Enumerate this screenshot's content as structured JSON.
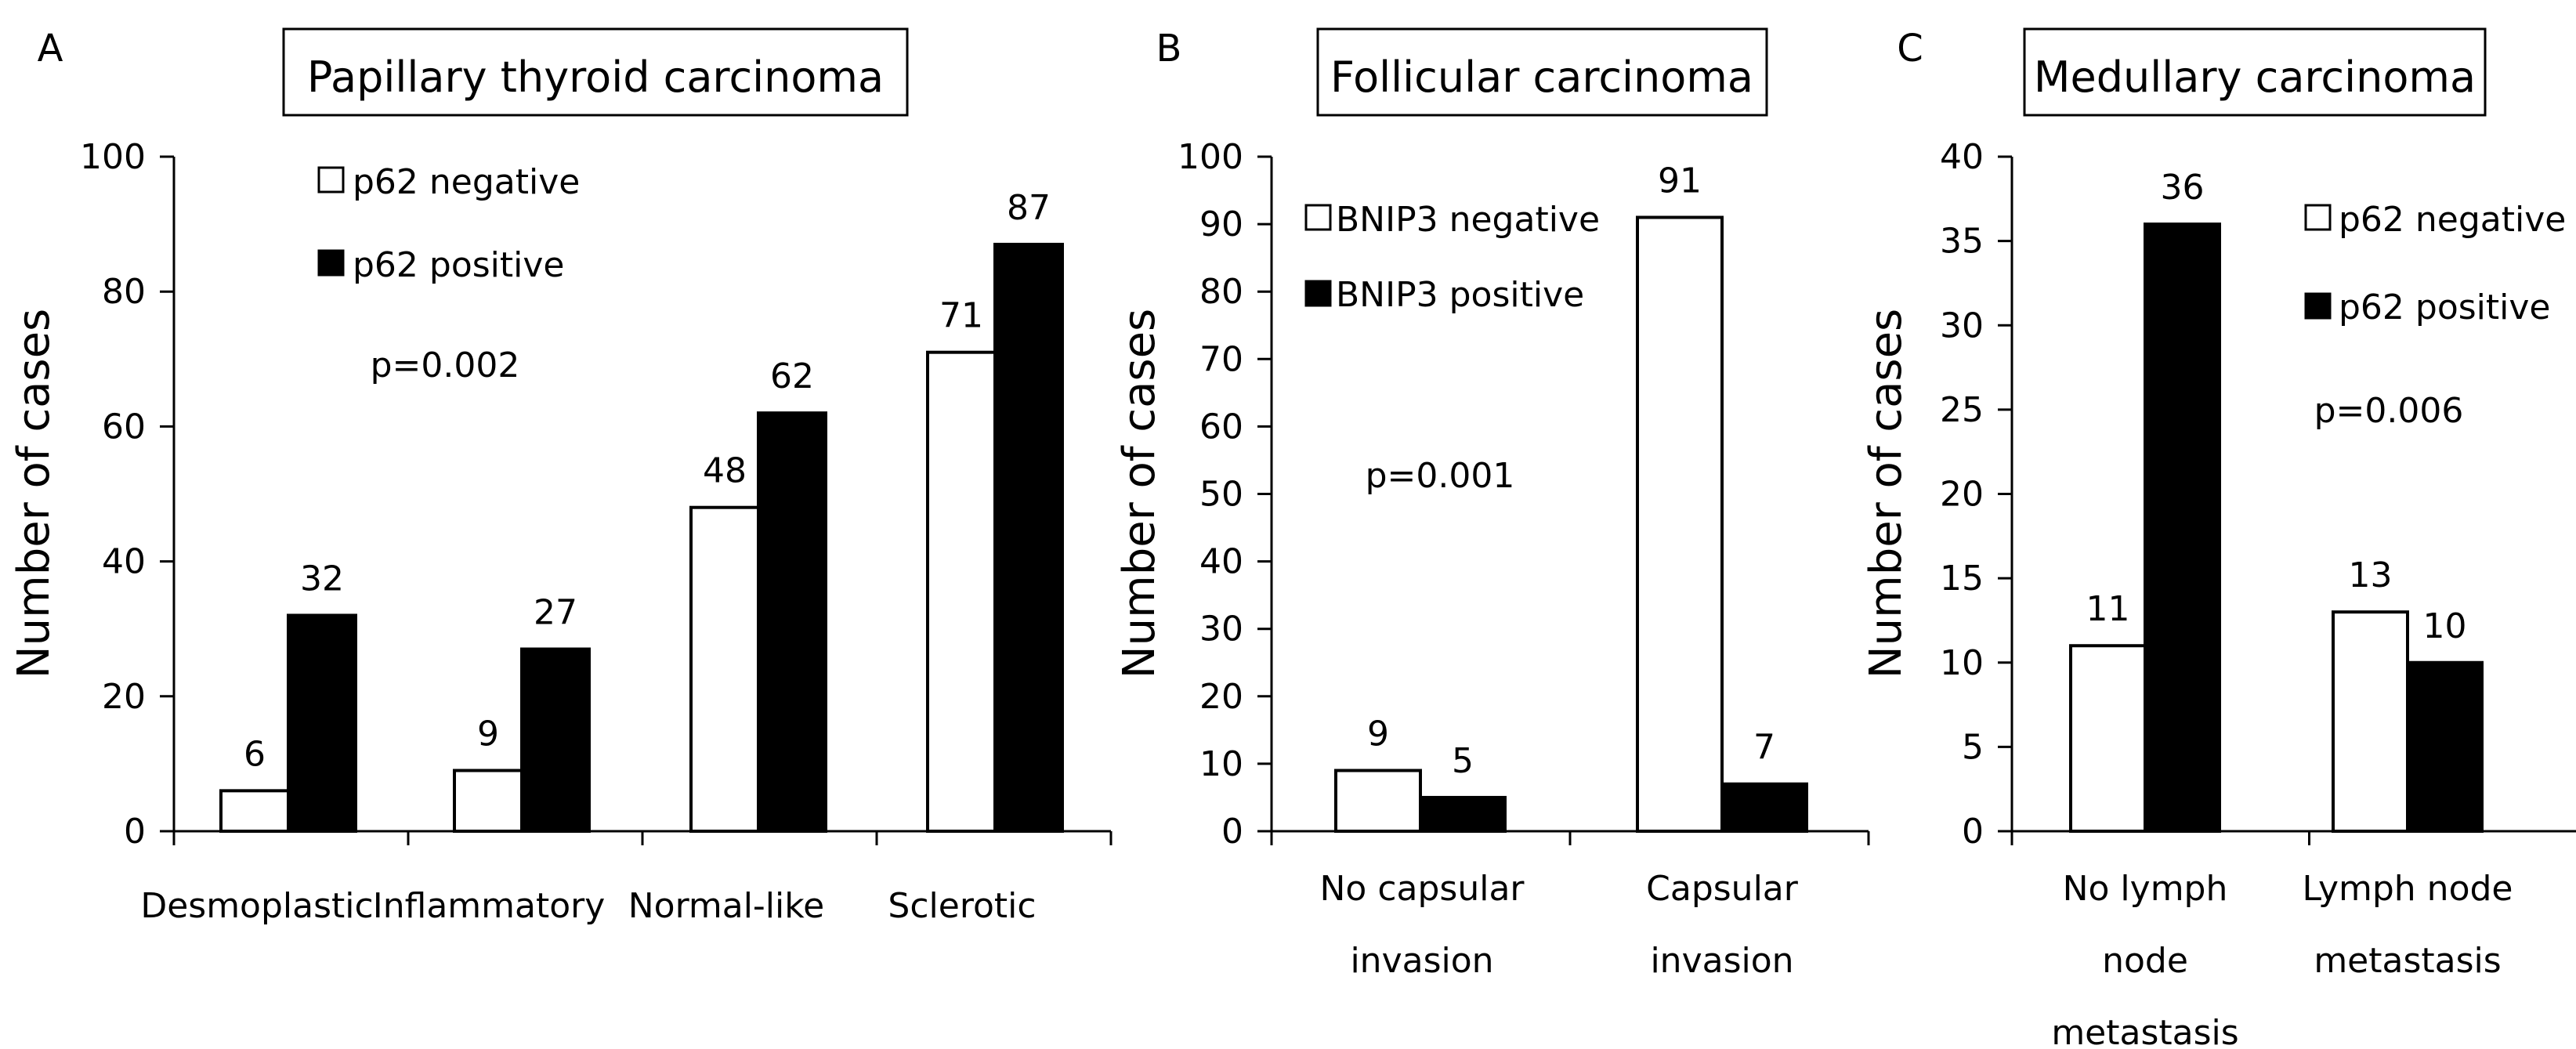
{
  "colors": {
    "negative_fill": "#ffffff",
    "positive_fill": "#000000",
    "stroke": "#000000"
  },
  "chart_data": [
    {
      "type": "bar",
      "panel_label": "A",
      "title": "Papillary thyroid carcinoma",
      "ylabel": "Number of cases",
      "xlabel": "",
      "ylim": [
        0,
        100
      ],
      "ytick_step": 20,
      "yticks": [
        "0",
        "20",
        "40",
        "60",
        "80",
        "100"
      ],
      "categories": [
        "Desmoplastic",
        "Inflammatory",
        "Normal-like",
        "Sclerotic"
      ],
      "series": [
        {
          "name": "p62 negative",
          "values": [
            6,
            9,
            48,
            71
          ]
        },
        {
          "name": "p62 positive",
          "values": [
            32,
            27,
            62,
            87
          ]
        }
      ],
      "annotation": "p=0.002",
      "legend_position": "top-left"
    },
    {
      "type": "bar",
      "panel_label": "B",
      "title": "Follicular carcinoma",
      "ylabel": "Number of cases",
      "xlabel": "",
      "ylim": [
        0,
        100
      ],
      "ytick_step": 10,
      "yticks": [
        "0",
        "10",
        "20",
        "30",
        "40",
        "50",
        "60",
        "70",
        "80",
        "90",
        "100"
      ],
      "categories": [
        [
          "No capsular",
          "invasion"
        ],
        [
          "Capsular",
          "invasion"
        ]
      ],
      "series": [
        {
          "name": "BNIP3 negative",
          "values": [
            9,
            91
          ]
        },
        {
          "name": "BNIP3 positive",
          "values": [
            5,
            7
          ]
        }
      ],
      "annotation": "p=0.001",
      "legend_position": "top-left"
    },
    {
      "type": "bar",
      "panel_label": "C",
      "title": "Medullary carcinoma",
      "ylabel": "Number of cases",
      "xlabel": "",
      "ylim": [
        0,
        40
      ],
      "ytick_step": 5,
      "yticks": [
        "0",
        "5",
        "10",
        "15",
        "20",
        "25",
        "30",
        "35",
        "40"
      ],
      "categories": [
        [
          "No lymph",
          "node",
          "metastasis"
        ],
        [
          "Lymph node",
          "metastasis"
        ]
      ],
      "series": [
        {
          "name": "p62 negative",
          "values": [
            11,
            13
          ]
        },
        {
          "name": "p62 positive",
          "values": [
            36,
            10
          ]
        }
      ],
      "annotation": "p=0.006",
      "legend_position": "top-right"
    }
  ]
}
